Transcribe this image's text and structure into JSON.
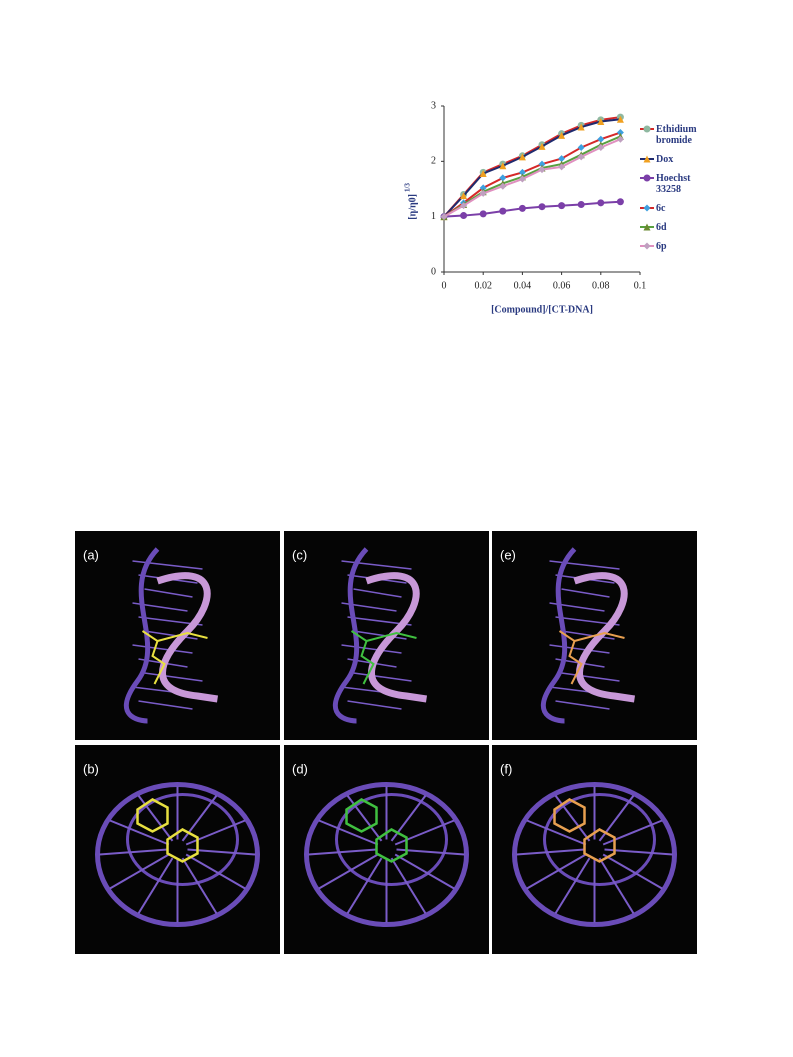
{
  "chart_data": {
    "type": "line",
    "xlabel": "[Compound]/[CT-DNA]",
    "ylabel": "[η/η0]",
    "ylabel_sup": "1/3",
    "x": [
      0,
      0.01,
      0.02,
      0.03,
      0.04,
      0.05,
      0.06,
      0.07,
      0.08,
      0.09
    ],
    "series": [
      {
        "name": "Ethidium bromide",
        "color": "#d62828",
        "marker_color": "#8fb8a0",
        "marker": "circle",
        "values": [
          1.0,
          1.4,
          1.8,
          1.95,
          2.1,
          2.3,
          2.5,
          2.65,
          2.75,
          2.8
        ]
      },
      {
        "name": "Dox",
        "color": "#1f2a6e",
        "marker_color": "#f0a020",
        "marker": "triangle",
        "values": [
          1.0,
          1.38,
          1.78,
          1.92,
          2.08,
          2.27,
          2.47,
          2.62,
          2.72,
          2.76
        ]
      },
      {
        "name": "Hoechst 33258",
        "color": "#7b3fa8",
        "marker_color": "#7b3fa8",
        "marker": "circle",
        "values": [
          1.0,
          1.02,
          1.05,
          1.1,
          1.15,
          1.18,
          1.2,
          1.22,
          1.25,
          1.27
        ]
      },
      {
        "name": "6c",
        "color": "#d62828",
        "marker_color": "#3fa0e0",
        "marker": "diamond",
        "values": [
          1.0,
          1.25,
          1.52,
          1.7,
          1.8,
          1.95,
          2.05,
          2.25,
          2.4,
          2.52
        ]
      },
      {
        "name": "6d",
        "color": "#58a040",
        "marker_color": "#6a8a30",
        "marker": "triangle",
        "values": [
          1.0,
          1.22,
          1.45,
          1.6,
          1.72,
          1.88,
          1.95,
          2.12,
          2.3,
          2.45
        ]
      },
      {
        "name": "6p",
        "color": "#e090c0",
        "marker_color": "#c0a0c0",
        "marker": "diamond",
        "values": [
          1.0,
          1.2,
          1.42,
          1.55,
          1.68,
          1.85,
          1.9,
          2.08,
          2.25,
          2.4
        ]
      }
    ],
    "xlim": [
      0,
      0.1
    ],
    "xticks": [
      0,
      0.02,
      0.04,
      0.06,
      0.08,
      0.1
    ],
    "ylim": [
      0,
      3
    ],
    "yticks": [
      0,
      1,
      2,
      3
    ],
    "grid": false,
    "legend": "right"
  },
  "figure": {
    "panels": [
      "(a)",
      "(c)",
      "(e)",
      "(b)",
      "(d)",
      "(f)"
    ]
  }
}
